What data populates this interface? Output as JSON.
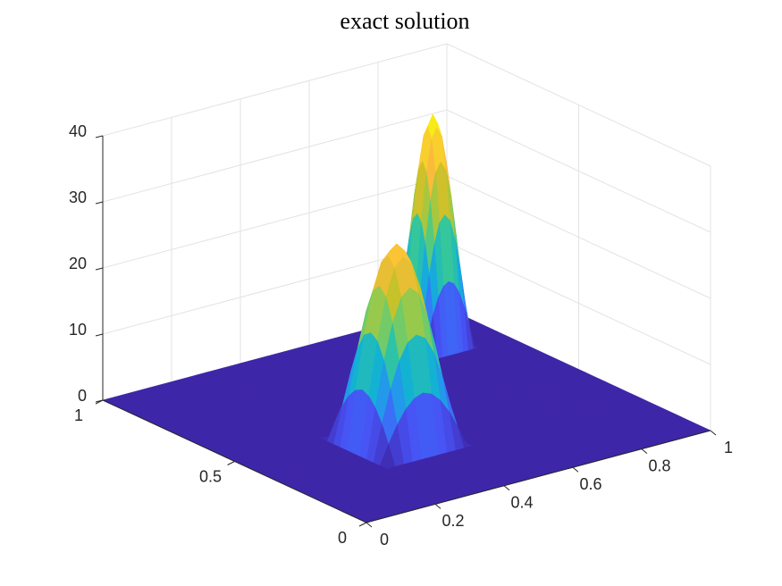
{
  "chart_data": {
    "type": "surface",
    "title": "exact solution",
    "x": [
      0,
      0.25,
      0.275,
      0.3,
      0.325,
      0.35,
      0.375,
      0.4,
      0.425,
      0.45,
      0.475,
      0.5,
      0.75,
      0.765,
      0.78,
      0.795,
      0.81,
      0.825,
      0.84,
      0.855,
      0.87,
      0.885,
      0.9,
      1
    ],
    "y": [
      0,
      0.25,
      0.275,
      0.3,
      0.325,
      0.35,
      0.375,
      0.4,
      0.425,
      0.45,
      0.475,
      0.5,
      0.75,
      0.765,
      0.78,
      0.795,
      0.81,
      0.825,
      0.84,
      0.855,
      0.87,
      0.885,
      0.9,
      1
    ],
    "z": [
      [
        0,
        0,
        0,
        0,
        0,
        0,
        0,
        0,
        0,
        0,
        0,
        0,
        0,
        0,
        0,
        0,
        0,
        0,
        0,
        0,
        0,
        0,
        0,
        0
      ],
      [
        0,
        0,
        0,
        0,
        0,
        0,
        0,
        0,
        0,
        0,
        0,
        0,
        0,
        0,
        0,
        0,
        0,
        0,
        0,
        0,
        0,
        0,
        0,
        0
      ],
      [
        0,
        0,
        2.9,
        5.5,
        7.5,
        8.8,
        9.3,
        8.8,
        7.5,
        5.5,
        2.9,
        0,
        0,
        0,
        0,
        0,
        0,
        0,
        0,
        0,
        0,
        0,
        0,
        0
      ],
      [
        0,
        0,
        5.5,
        10.4,
        14.3,
        16.8,
        17.6,
        16.8,
        14.3,
        10.4,
        5.5,
        0,
        0,
        0,
        0,
        0,
        0,
        0,
        0,
        0,
        0,
        0,
        0,
        0
      ],
      [
        0,
        0,
        7.5,
        14.3,
        19.6,
        23.1,
        24.3,
        23.1,
        19.6,
        14.3,
        7.5,
        0,
        0,
        0,
        0,
        0,
        0,
        0,
        0,
        0,
        0,
        0,
        0,
        0
      ],
      [
        0,
        0,
        8.8,
        16.8,
        23.1,
        27.1,
        28.5,
        27.1,
        23.1,
        16.8,
        8.8,
        0,
        0,
        0,
        0,
        0,
        0,
        0,
        0,
        0,
        0,
        0,
        0,
        0
      ],
      [
        0,
        0,
        9.3,
        17.6,
        24.3,
        28.5,
        30,
        28.5,
        24.3,
        17.6,
        9.3,
        0,
        0,
        0,
        0,
        0,
        0,
        0,
        0,
        0,
        0,
        0,
        0,
        0
      ],
      [
        0,
        0,
        8.8,
        16.8,
        23.1,
        27.1,
        28.5,
        27.1,
        23.1,
        16.8,
        8.8,
        0,
        0,
        0,
        0,
        0,
        0,
        0,
        0,
        0,
        0,
        0,
        0,
        0
      ],
      [
        0,
        0,
        7.5,
        14.3,
        19.6,
        23.1,
        24.3,
        23.1,
        19.6,
        14.3,
        7.5,
        0,
        0,
        0,
        0,
        0,
        0,
        0,
        0,
        0,
        0,
        0,
        0,
        0
      ],
      [
        0,
        0,
        5.5,
        10.4,
        14.3,
        16.8,
        17.6,
        16.8,
        14.3,
        10.4,
        5.5,
        0,
        0,
        0,
        0,
        0,
        0,
        0,
        0,
        0,
        0,
        0,
        0,
        0
      ],
      [
        0,
        0,
        2.9,
        5.5,
        7.5,
        8.8,
        9.3,
        8.8,
        7.5,
        5.5,
        2.9,
        0,
        0,
        0,
        0,
        0,
        0,
        0,
        0,
        0,
        0,
        0,
        0,
        0
      ],
      [
        0,
        0,
        0,
        0,
        0,
        0,
        0,
        0,
        0,
        0,
        0,
        0,
        0,
        0,
        0,
        0,
        0,
        0,
        0,
        0,
        0,
        0,
        0,
        0
      ],
      [
        0,
        0,
        0,
        0,
        0,
        0,
        0,
        0,
        0,
        0,
        0,
        0,
        0,
        0,
        0,
        0,
        0,
        0,
        0,
        0,
        0,
        0,
        0,
        0
      ],
      [
        0,
        0,
        0,
        0,
        0,
        0,
        0,
        0,
        0,
        0,
        0,
        0,
        0,
        3.3,
        6.4,
        8.8,
        10.3,
        10.8,
        10.3,
        8.8,
        6.4,
        3.3,
        0,
        0
      ],
      [
        0,
        0,
        0,
        0,
        0,
        0,
        0,
        0,
        0,
        0,
        0,
        0,
        0,
        6.4,
        12.1,
        16.6,
        19.6,
        20.6,
        19.6,
        16.6,
        12.1,
        6.4,
        0,
        0
      ],
      [
        0,
        0,
        0,
        0,
        0,
        0,
        0,
        0,
        0,
        0,
        0,
        0,
        0,
        8.8,
        16.6,
        22.9,
        26.9,
        28.3,
        26.9,
        22.9,
        16.6,
        8.8,
        0,
        0
      ],
      [
        0,
        0,
        0,
        0,
        0,
        0,
        0,
        0,
        0,
        0,
        0,
        0,
        0,
        10.3,
        19.6,
        26.9,
        31.7,
        33.3,
        31.7,
        26.9,
        19.6,
        10.3,
        0,
        0
      ],
      [
        0,
        0,
        0,
        0,
        0,
        0,
        0,
        0,
        0,
        0,
        0,
        0,
        0,
        10.8,
        20.6,
        28.3,
        33.3,
        35,
        33.3,
        28.3,
        20.6,
        10.8,
        0,
        0
      ],
      [
        0,
        0,
        0,
        0,
        0,
        0,
        0,
        0,
        0,
        0,
        0,
        0,
        0,
        10.3,
        19.6,
        26.9,
        31.7,
        33.3,
        31.7,
        26.9,
        19.6,
        10.3,
        0,
        0
      ],
      [
        0,
        0,
        0,
        0,
        0,
        0,
        0,
        0,
        0,
        0,
        0,
        0,
        0,
        8.8,
        16.6,
        22.9,
        26.9,
        28.3,
        26.9,
        22.9,
        16.6,
        8.8,
        0,
        0
      ],
      [
        0,
        0,
        0,
        0,
        0,
        0,
        0,
        0,
        0,
        0,
        0,
        0,
        0,
        6.4,
        12.1,
        16.6,
        19.6,
        20.6,
        19.6,
        16.6,
        12.1,
        6.4,
        0,
        0
      ],
      [
        0,
        0,
        0,
        0,
        0,
        0,
        0,
        0,
        0,
        0,
        0,
        0,
        0,
        3.3,
        6.4,
        8.8,
        10.3,
        10.8,
        10.3,
        8.8,
        6.4,
        3.3,
        0,
        0
      ],
      [
        0,
        0,
        0,
        0,
        0,
        0,
        0,
        0,
        0,
        0,
        0,
        0,
        0,
        0,
        0,
        0,
        0,
        0,
        0,
        0,
        0,
        0,
        0,
        0
      ],
      [
        0,
        0,
        0,
        0,
        0,
        0,
        0,
        0,
        0,
        0,
        0,
        0,
        0,
        0,
        0,
        0,
        0,
        0,
        0,
        0,
        0,
        0,
        0,
        0
      ]
    ],
    "xlim": [
      0,
      1
    ],
    "ylim": [
      0,
      1
    ],
    "zlim": [
      0,
      40
    ],
    "xticks": [
      0,
      0.2,
      0.4,
      0.6,
      0.8,
      1
    ],
    "yticks": [
      0,
      0.5,
      1
    ],
    "zticks": [
      0,
      10,
      20,
      30,
      40
    ],
    "grid": true,
    "colormap": "parula"
  }
}
